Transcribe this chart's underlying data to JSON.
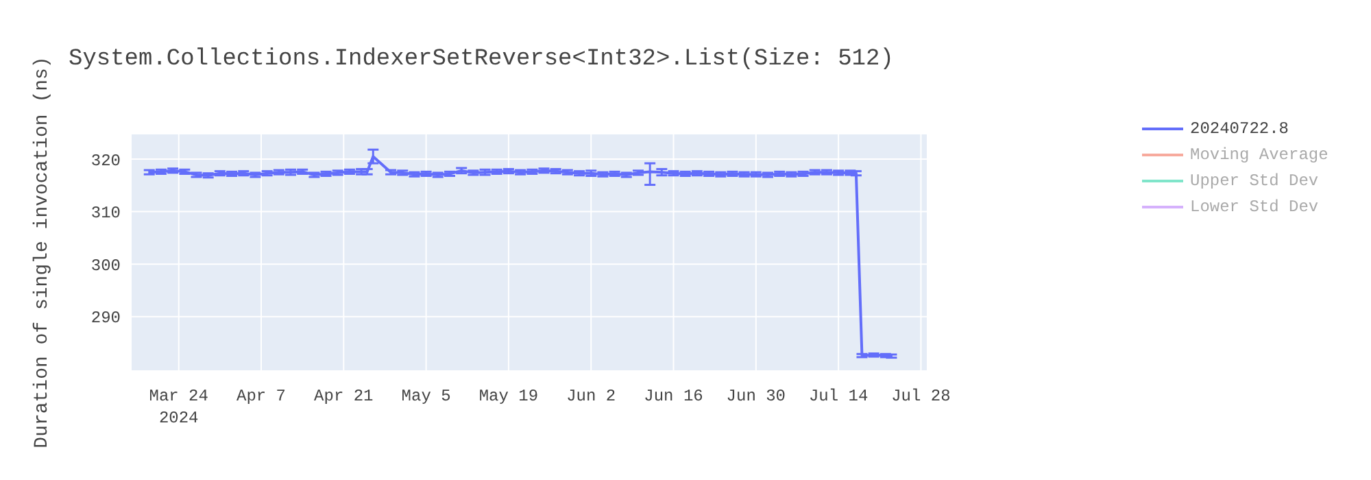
{
  "chart_data": {
    "type": "line",
    "title": "System.Collections.IndexerSetReverse<Int32>.List(Size: 512)",
    "ylabel": "Duration of single invocation (ns)",
    "x": [
      "2024-03-19",
      "2024-03-21",
      "2024-03-23",
      "2024-03-25",
      "2024-03-27",
      "2024-03-29",
      "2024-03-31",
      "2024-04-02",
      "2024-04-04",
      "2024-04-06",
      "2024-04-08",
      "2024-04-10",
      "2024-04-12",
      "2024-04-14",
      "2024-04-16",
      "2024-04-18",
      "2024-04-20",
      "2024-04-22",
      "2024-04-24",
      "2024-04-25",
      "2024-04-26",
      "2024-04-29",
      "2024-05-01",
      "2024-05-03",
      "2024-05-05",
      "2024-05-07",
      "2024-05-09",
      "2024-05-11",
      "2024-05-13",
      "2024-05-15",
      "2024-05-17",
      "2024-05-19",
      "2024-05-21",
      "2024-05-23",
      "2024-05-25",
      "2024-05-27",
      "2024-05-29",
      "2024-05-31",
      "2024-06-02",
      "2024-06-04",
      "2024-06-06",
      "2024-06-08",
      "2024-06-10",
      "2024-06-12",
      "2024-06-14",
      "2024-06-16",
      "2024-06-18",
      "2024-06-20",
      "2024-06-22",
      "2024-06-24",
      "2024-06-26",
      "2024-06-28",
      "2024-06-30",
      "2024-07-02",
      "2024-07-04",
      "2024-07-06",
      "2024-07-08",
      "2024-07-10",
      "2024-07-12",
      "2024-07-14",
      "2024-07-16",
      "2024-07-17",
      "2024-07-18",
      "2024-07-20",
      "2024-07-22",
      "2024-07-23"
    ],
    "series": [
      {
        "name": "20240722.8",
        "color": "#636efa",
        "values": [
          317.5,
          317.6,
          317.8,
          317.6,
          317.0,
          316.9,
          317.3,
          317.2,
          317.3,
          317.0,
          317.3,
          317.5,
          317.5,
          317.6,
          317.0,
          317.2,
          317.4,
          317.6,
          317.6,
          317.6,
          320.5,
          317.5,
          317.4,
          317.1,
          317.2,
          317.0,
          317.2,
          317.8,
          317.4,
          317.5,
          317.6,
          317.7,
          317.5,
          317.6,
          317.8,
          317.7,
          317.5,
          317.3,
          317.3,
          317.1,
          317.2,
          317.0,
          317.4,
          317.6,
          317.5,
          317.3,
          317.2,
          317.3,
          317.2,
          317.1,
          317.2,
          317.1,
          317.1,
          317.0,
          317.2,
          317.1,
          317.2,
          317.5,
          317.5,
          317.4,
          317.4,
          317.3,
          282.6,
          282.7,
          282.6,
          282.5
        ],
        "errors": [
          0.4,
          0.4,
          0.4,
          0.4,
          0.4,
          0.4,
          0.4,
          0.4,
          0.4,
          0.4,
          0.4,
          0.4,
          0.5,
          0.4,
          0.4,
          0.4,
          0.4,
          0.4,
          0.5,
          0.5,
          1.3,
          0.4,
          0.4,
          0.4,
          0.4,
          0.4,
          0.4,
          0.5,
          0.4,
          0.5,
          0.4,
          0.4,
          0.4,
          0.4,
          0.4,
          0.4,
          0.4,
          0.4,
          0.5,
          0.4,
          0.4,
          0.4,
          0.4,
          [
            315.1,
            319.2
          ],
          0.6,
          0.4,
          0.4,
          0.4,
          0.4,
          0.4,
          0.4,
          0.4,
          0.4,
          0.4,
          0.4,
          0.4,
          0.4,
          0.4,
          0.4,
          0.4,
          0.4,
          0.4,
          0.3,
          0.3,
          0.3,
          0.3
        ]
      },
      {
        "name": "Moving Average",
        "color": "#f7aa9d",
        "values": [
          null,
          null,
          null,
          null,
          null,
          null,
          null,
          null,
          null,
          null,
          null,
          null,
          null,
          null,
          null,
          null,
          null,
          null,
          null,
          null,
          null,
          null,
          null,
          null,
          null,
          null,
          null,
          null,
          null,
          null,
          null,
          null,
          null,
          null,
          null,
          null,
          null,
          null,
          null,
          null,
          null,
          null,
          null,
          null,
          null,
          null,
          null,
          null,
          null,
          null,
          null,
          null,
          null,
          null,
          null,
          null,
          null,
          null,
          null,
          null,
          null,
          null,
          null,
          null,
          null,
          null
        ]
      },
      {
        "name": "Upper Std Dev",
        "color": "#80e5ca",
        "values": [
          null,
          null,
          null,
          null,
          null,
          null,
          null,
          null,
          null,
          null,
          null,
          null,
          null,
          null,
          null,
          null,
          null,
          null,
          null,
          null,
          null,
          null,
          null,
          null,
          null,
          null,
          null,
          null,
          null,
          null,
          null,
          null,
          null,
          null,
          null,
          null,
          null,
          null,
          null,
          null,
          null,
          null,
          null,
          null,
          null,
          null,
          null,
          null,
          null,
          null,
          null,
          null,
          null,
          null,
          null,
          null,
          null,
          null,
          null,
          null,
          null,
          null,
          null,
          null,
          null,
          null
        ]
      },
      {
        "name": "Lower Std Dev",
        "color": "#d5b1fc",
        "values": [
          null,
          null,
          null,
          null,
          null,
          null,
          null,
          null,
          null,
          null,
          null,
          null,
          null,
          null,
          null,
          null,
          null,
          null,
          null,
          null,
          null,
          null,
          null,
          null,
          null,
          null,
          null,
          null,
          null,
          null,
          null,
          null,
          null,
          null,
          null,
          null,
          null,
          null,
          null,
          null,
          null,
          null,
          null,
          null,
          null,
          null,
          null,
          null,
          null,
          null,
          null,
          null,
          null,
          null,
          null,
          null,
          null,
          null,
          null,
          null,
          null,
          null,
          null,
          null,
          null,
          null
        ]
      }
    ],
    "xlim": [
      "2024-03-16",
      "2024-07-29"
    ],
    "xticks": [
      {
        "value": "2024-03-24",
        "label": "Mar 24\n2024"
      },
      {
        "value": "2024-04-07",
        "label": "Apr 7"
      },
      {
        "value": "2024-04-21",
        "label": "Apr 21"
      },
      {
        "value": "2024-05-05",
        "label": "May 5"
      },
      {
        "value": "2024-05-19",
        "label": "May 19"
      },
      {
        "value": "2024-06-02",
        "label": "Jun 2"
      },
      {
        "value": "2024-06-16",
        "label": "Jun 16"
      },
      {
        "value": "2024-06-30",
        "label": "Jun 30"
      },
      {
        "value": "2024-07-14",
        "label": "Jul 14"
      },
      {
        "value": "2024-07-28",
        "label": "Jul 28"
      }
    ],
    "ylim": [
      279.8,
      324.7
    ],
    "yticks": [
      290,
      300,
      310,
      320
    ],
    "grid": true,
    "legend": "top right",
    "marker": "none",
    "line_style": "solid"
  }
}
